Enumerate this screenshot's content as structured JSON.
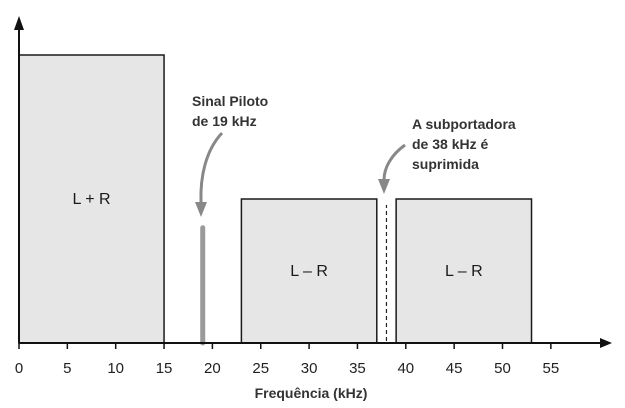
{
  "chart_data": {
    "type": "bar",
    "title": "",
    "xlabel": "Frequência (kHz)",
    "ylabel": "",
    "xlim": [
      0,
      60
    ],
    "x_ticks": [
      0,
      5,
      10,
      15,
      20,
      25,
      30,
      35,
      40,
      45,
      50,
      55
    ],
    "tick_labels": [
      "0",
      "5",
      "10",
      "15",
      "20",
      "25",
      "30",
      "35",
      "40",
      "45",
      "50",
      "55"
    ],
    "blocks": [
      {
        "label": "L + R",
        "x0": 0,
        "x1": 15,
        "level": 1.0
      },
      {
        "label": "L – R",
        "x0": 23,
        "x1": 37,
        "level": 0.5
      },
      {
        "label": "L – R",
        "x0": 39,
        "x1": 53,
        "level": 0.5
      }
    ],
    "pilot": {
      "frequency": 19,
      "level": 0.4
    },
    "suppressed_carrier": {
      "frequency": 38
    },
    "annotations": [
      {
        "id": "pilot",
        "lines": [
          "Sinal Piloto",
          "de 19 kHz"
        ]
      },
      {
        "id": "carrier",
        "lines": [
          "A subportadora",
          "de 38 kHz é",
          "suprimida"
        ]
      }
    ],
    "colors": {
      "block_fill": "#e6e6e6",
      "block_stroke": "#1a1a1a",
      "pilot": "#9a9a9a",
      "axis": "#111111",
      "arrow": "#888888"
    }
  }
}
